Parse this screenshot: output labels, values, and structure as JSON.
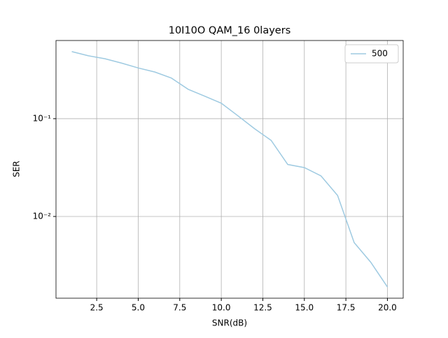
{
  "chart_data": {
    "type": "line",
    "title": "10I10O QAM_16 0layers",
    "x_label": "SNR(dB)",
    "y_label": "SER",
    "x": [
      1,
      2,
      3,
      4,
      5,
      6,
      7,
      8,
      9,
      10,
      11,
      12,
      13,
      14,
      15,
      16,
      17,
      18,
      19,
      20
    ],
    "series": [
      {
        "name": "500",
        "color": "#9ecae1",
        "values": [
          0.485,
          0.44,
          0.41,
          0.37,
          0.33,
          0.3,
          0.26,
          0.2,
          0.17,
          0.144,
          0.107,
          0.079,
          0.06,
          0.034,
          0.0316,
          0.026,
          0.0164,
          0.0054,
          0.0034,
          0.0019
        ]
      }
    ],
    "xlim": [
      0.05,
      20.95
    ],
    "xticks": [
      2.5,
      {
        "value": 5,
        "label": "5.0"
      },
      7.5,
      {
        "value": 10,
        "label": "10.0"
      },
      12.5,
      {
        "value": 15,
        "label": "15.0"
      },
      17.5,
      {
        "value": 20,
        "label": "20.0"
      }
    ],
    "ylim": [
      0.00146,
      0.63
    ],
    "y_scale": "log",
    "yticks": [
      {
        "value": 0.01,
        "label": "10⁻²"
      },
      {
        "value": 0.1,
        "label": "10⁻¹"
      }
    ],
    "grid": true,
    "legend_position": "upper right"
  }
}
